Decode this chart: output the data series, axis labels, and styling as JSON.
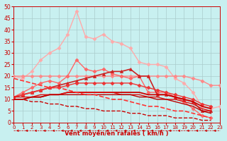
{
  "background_color": "#c8f0f0",
  "grid_color": "#aacccc",
  "xlabel": "Vent moyen/en rafales ( km/h )",
  "xlim": [
    0,
    23
  ],
  "ylim": [
    0,
    50
  ],
  "yticks": [
    0,
    5,
    10,
    15,
    20,
    25,
    30,
    35,
    40,
    45,
    50
  ],
  "xticks": [
    0,
    1,
    2,
    3,
    4,
    5,
    6,
    7,
    8,
    9,
    10,
    11,
    12,
    13,
    14,
    15,
    16,
    17,
    18,
    19,
    20,
    21,
    22,
    23
  ],
  "series": [
    {
      "color": "#ffaaaa",
      "marker": "D",
      "markersize": 2.5,
      "linewidth": 1.0,
      "y": [
        20,
        19,
        22,
        27,
        30,
        32,
        38,
        48,
        37,
        36,
        38,
        35,
        34,
        32,
        26,
        25,
        25,
        24,
        19,
        17,
        13,
        7,
        6,
        7
      ]
    },
    {
      "color": "#ff8888",
      "marker": "D",
      "markersize": 2.5,
      "linewidth": 1.0,
      "y": [
        20,
        20,
        20,
        20,
        20,
        20,
        20,
        20,
        20,
        20,
        20,
        20,
        20,
        20,
        20,
        20,
        20,
        20,
        20,
        20,
        19,
        18,
        16,
        16
      ]
    },
    {
      "color": "#ff6666",
      "marker": "D",
      "markersize": 2.5,
      "linewidth": 1.0,
      "y": [
        11,
        13,
        15,
        17,
        18,
        17,
        20,
        27,
        23,
        22,
        23,
        21,
        20,
        19,
        20,
        13,
        13,
        13,
        11,
        9,
        6,
        3,
        2,
        null
      ]
    },
    {
      "color": "#cc2222",
      "marker": "^",
      "markersize": 3,
      "linewidth": 1.2,
      "y": [
        11,
        12,
        13,
        14,
        15,
        16,
        17,
        18,
        19,
        20,
        21,
        22,
        22,
        23,
        20,
        20,
        12,
        12,
        11,
        10,
        9,
        5,
        5,
        null
      ]
    },
    {
      "color": "#ee3333",
      "marker": "D",
      "markersize": 2.5,
      "linewidth": 1.0,
      "y": [
        11,
        12,
        13,
        14,
        15,
        15,
        16,
        17,
        17,
        17,
        17,
        17,
        17,
        17,
        16,
        15,
        14,
        13,
        12,
        11,
        10,
        8,
        7,
        null
      ]
    },
    {
      "color": "#cc0000",
      "marker": null,
      "linewidth": 1.3,
      "y": [
        10,
        10,
        11,
        11,
        12,
        12,
        13,
        13,
        13,
        13,
        13,
        13,
        13,
        13,
        13,
        12,
        12,
        12,
        11,
        10,
        9,
        7,
        6,
        null
      ]
    },
    {
      "color": "#dd1111",
      "marker": null,
      "linewidth": 1.0,
      "y": [
        11,
        11,
        11,
        12,
        12,
        12,
        13,
        13,
        13,
        13,
        13,
        13,
        12,
        12,
        12,
        11,
        11,
        10,
        10,
        9,
        8,
        6,
        5,
        null
      ]
    },
    {
      "color": "#bb0000",
      "marker": null,
      "linewidth": 1.0,
      "y": [
        10,
        10,
        11,
        11,
        12,
        12,
        12,
        12,
        12,
        12,
        12,
        12,
        12,
        12,
        11,
        11,
        10,
        10,
        9,
        8,
        7,
        5,
        4,
        null
      ]
    },
    {
      "color": "#ff3333",
      "marker": null,
      "linewidth": 1.2,
      "linestyle": "--",
      "y": [
        19,
        18,
        17,
        16,
        15,
        15,
        14,
        13,
        12,
        12,
        11,
        10,
        10,
        9,
        8,
        7,
        7,
        6,
        5,
        5,
        4,
        3,
        2,
        null
      ]
    },
    {
      "color": "#cc0000",
      "marker": null,
      "linewidth": 1.0,
      "linestyle": "--",
      "y": [
        10,
        10,
        9,
        9,
        8,
        8,
        7,
        7,
        6,
        6,
        5,
        5,
        5,
        4,
        4,
        3,
        3,
        3,
        2,
        2,
        2,
        1,
        1,
        null
      ]
    }
  ],
  "arrow_color": "#cc0000"
}
